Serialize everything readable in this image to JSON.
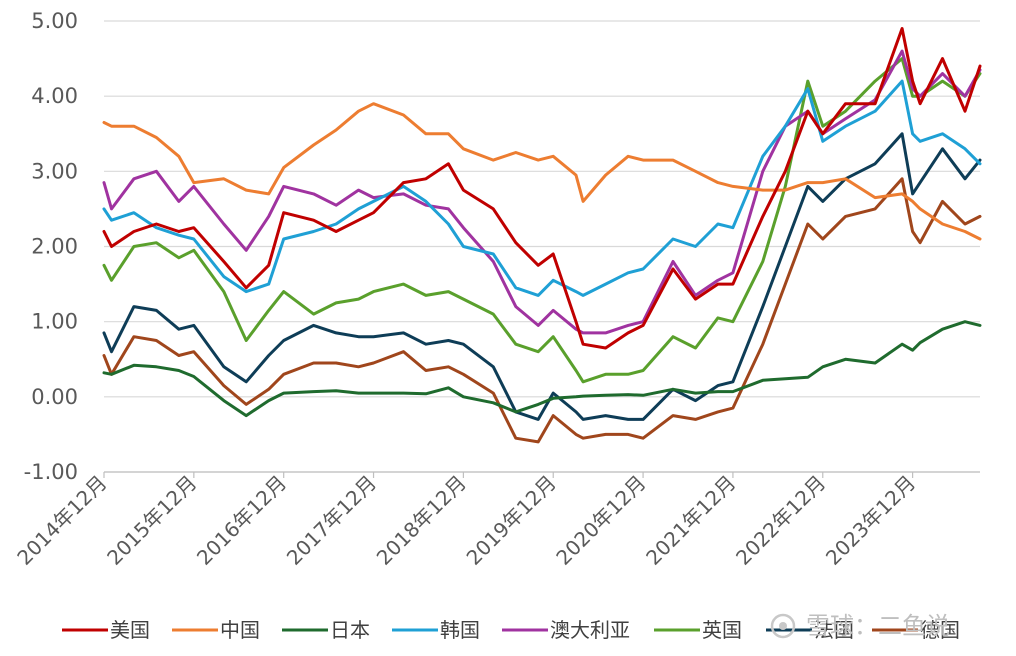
{
  "chart_data": {
    "type": "line",
    "title": "",
    "xlabel": "",
    "ylabel": "",
    "ylim": [
      -1.0,
      5.0
    ],
    "y_ticks": [
      "5.00",
      "4.00",
      "3.00",
      "2.00",
      "1.00",
      "0.00",
      "-1.00"
    ],
    "y_tick_values": [
      5,
      4,
      3,
      2,
      1,
      0,
      -1
    ],
    "x_ticks": [
      "2014年12月",
      "2015年12月",
      "2016年12月",
      "2017年12月",
      "2018年12月",
      "2019年12月",
      "2020年12月",
      "2021年12月",
      "2022年12月",
      "2023年12月"
    ],
    "x_tick_values": [
      2014.917,
      2015.917,
      2016.917,
      2017.917,
      2018.917,
      2019.917,
      2020.917,
      2021.917,
      2022.917,
      2023.917
    ],
    "xlim": [
      2014.917,
      2024.667
    ],
    "grid": "horizontal",
    "legend_position": "bottom",
    "series": [
      {
        "name": "美国",
        "color": "#C00000",
        "x": [
          2014.917,
          2015.0,
          2015.25,
          2015.5,
          2015.75,
          2015.917,
          2016.25,
          2016.5,
          2016.75,
          2016.917,
          2017.25,
          2017.5,
          2017.75,
          2017.917,
          2018.25,
          2018.5,
          2018.75,
          2018.917,
          2019.25,
          2019.5,
          2019.75,
          2019.917,
          2020.17,
          2020.25,
          2020.5,
          2020.75,
          2020.917,
          2021.25,
          2021.5,
          2021.75,
          2021.917,
          2022.25,
          2022.5,
          2022.75,
          2022.917,
          2023.17,
          2023.5,
          2023.8,
          2023.917,
          2024.0,
          2024.25,
          2024.5,
          2024.667
        ],
        "y": [
          2.2,
          2.0,
          2.2,
          2.3,
          2.2,
          2.25,
          1.8,
          1.45,
          1.75,
          2.45,
          2.35,
          2.2,
          2.35,
          2.45,
          2.85,
          2.9,
          3.1,
          2.75,
          2.5,
          2.05,
          1.75,
          1.9,
          1.0,
          0.7,
          0.65,
          0.85,
          0.95,
          1.7,
          1.3,
          1.5,
          1.5,
          2.4,
          3.0,
          3.8,
          3.5,
          3.9,
          3.9,
          4.9,
          4.2,
          3.9,
          4.5,
          3.8,
          4.4
        ]
      },
      {
        "name": "中国",
        "color": "#ED7D31",
        "x": [
          2014.917,
          2015.0,
          2015.25,
          2015.5,
          2015.75,
          2015.917,
          2016.25,
          2016.5,
          2016.75,
          2016.917,
          2017.25,
          2017.5,
          2017.75,
          2017.917,
          2018.25,
          2018.5,
          2018.75,
          2018.917,
          2019.25,
          2019.5,
          2019.75,
          2019.917,
          2020.17,
          2020.25,
          2020.5,
          2020.75,
          2020.917,
          2021.25,
          2021.5,
          2021.75,
          2021.917,
          2022.25,
          2022.5,
          2022.75,
          2022.917,
          2023.17,
          2023.5,
          2023.8,
          2023.917,
          2024.0,
          2024.25,
          2024.5,
          2024.667
        ],
        "y": [
          3.65,
          3.6,
          3.6,
          3.45,
          3.2,
          2.85,
          2.9,
          2.75,
          2.7,
          3.05,
          3.35,
          3.55,
          3.8,
          3.9,
          3.75,
          3.5,
          3.5,
          3.3,
          3.15,
          3.25,
          3.15,
          3.2,
          2.95,
          2.6,
          2.95,
          3.2,
          3.15,
          3.15,
          3.0,
          2.85,
          2.8,
          2.75,
          2.75,
          2.85,
          2.85,
          2.9,
          2.65,
          2.7,
          2.6,
          2.5,
          2.3,
          2.2,
          2.1
        ]
      },
      {
        "name": "日本",
        "color": "#1F6B2E",
        "x": [
          2014.917,
          2015.0,
          2015.25,
          2015.5,
          2015.75,
          2015.917,
          2016.25,
          2016.5,
          2016.75,
          2016.917,
          2017.25,
          2017.5,
          2017.75,
          2017.917,
          2018.25,
          2018.5,
          2018.75,
          2018.917,
          2019.25,
          2019.5,
          2019.75,
          2019.917,
          2020.17,
          2020.25,
          2020.5,
          2020.75,
          2020.917,
          2021.25,
          2021.5,
          2021.75,
          2021.917,
          2022.25,
          2022.5,
          2022.75,
          2022.917,
          2023.17,
          2023.5,
          2023.8,
          2023.917,
          2024.0,
          2024.25,
          2024.5,
          2024.667
        ],
        "y": [
          0.32,
          0.3,
          0.42,
          0.4,
          0.35,
          0.27,
          -0.05,
          -0.25,
          -0.05,
          0.05,
          0.07,
          0.08,
          0.05,
          0.05,
          0.05,
          0.04,
          0.12,
          0.0,
          -0.08,
          -0.2,
          -0.1,
          -0.02,
          0.0,
          0.01,
          0.02,
          0.03,
          0.02,
          0.1,
          0.05,
          0.07,
          0.07,
          0.22,
          0.24,
          0.26,
          0.4,
          0.5,
          0.45,
          0.7,
          0.62,
          0.72,
          0.9,
          1.0,
          0.95
        ]
      },
      {
        "name": "韩国",
        "color": "#1FA0D5",
        "x": [
          2014.917,
          2015.0,
          2015.25,
          2015.5,
          2015.75,
          2015.917,
          2016.25,
          2016.5,
          2016.75,
          2016.917,
          2017.25,
          2017.5,
          2017.75,
          2017.917,
          2018.25,
          2018.5,
          2018.75,
          2018.917,
          2019.25,
          2019.5,
          2019.75,
          2019.917,
          2020.17,
          2020.25,
          2020.5,
          2020.75,
          2020.917,
          2021.25,
          2021.5,
          2021.75,
          2021.917,
          2022.25,
          2022.5,
          2022.75,
          2022.917,
          2023.17,
          2023.5,
          2023.8,
          2023.917,
          2024.0,
          2024.25,
          2024.5,
          2024.667
        ],
        "y": [
          2.5,
          2.35,
          2.45,
          2.25,
          2.15,
          2.1,
          1.6,
          1.4,
          1.5,
          2.1,
          2.2,
          2.3,
          2.5,
          2.6,
          2.8,
          2.6,
          2.3,
          2.0,
          1.9,
          1.45,
          1.35,
          1.55,
          1.4,
          1.35,
          1.5,
          1.65,
          1.7,
          2.1,
          2.0,
          2.3,
          2.25,
          3.2,
          3.6,
          4.1,
          3.4,
          3.6,
          3.8,
          4.2,
          3.5,
          3.4,
          3.5,
          3.3,
          3.1
        ]
      },
      {
        "name": "澳大利亚",
        "color": "#A033A0",
        "x": [
          2014.917,
          2015.0,
          2015.25,
          2015.5,
          2015.75,
          2015.917,
          2016.25,
          2016.5,
          2016.75,
          2016.917,
          2017.25,
          2017.5,
          2017.75,
          2017.917,
          2018.25,
          2018.5,
          2018.75,
          2018.917,
          2019.25,
          2019.5,
          2019.75,
          2019.917,
          2020.17,
          2020.25,
          2020.5,
          2020.75,
          2020.917,
          2021.25,
          2021.5,
          2021.75,
          2021.917,
          2022.25,
          2022.5,
          2022.75,
          2022.917,
          2023.17,
          2023.5,
          2023.8,
          2023.917,
          2024.0,
          2024.25,
          2024.5,
          2024.667
        ],
        "y": [
          2.85,
          2.5,
          2.9,
          3.0,
          2.6,
          2.8,
          2.3,
          1.95,
          2.4,
          2.8,
          2.7,
          2.55,
          2.75,
          2.65,
          2.7,
          2.55,
          2.5,
          2.25,
          1.8,
          1.2,
          0.95,
          1.15,
          0.9,
          0.85,
          0.85,
          0.95,
          1.0,
          1.8,
          1.35,
          1.55,
          1.65,
          3.0,
          3.6,
          3.8,
          3.5,
          3.7,
          3.95,
          4.6,
          4.1,
          4.0,
          4.3,
          4.0,
          4.35
        ]
      },
      {
        "name": "英国",
        "color": "#5AA02C",
        "x": [
          2014.917,
          2015.0,
          2015.25,
          2015.5,
          2015.75,
          2015.917,
          2016.25,
          2016.5,
          2016.75,
          2016.917,
          2017.25,
          2017.5,
          2017.75,
          2017.917,
          2018.25,
          2018.5,
          2018.75,
          2018.917,
          2019.25,
          2019.5,
          2019.75,
          2019.917,
          2020.17,
          2020.25,
          2020.5,
          2020.75,
          2020.917,
          2021.25,
          2021.5,
          2021.75,
          2021.917,
          2022.25,
          2022.5,
          2022.75,
          2022.917,
          2023.17,
          2023.5,
          2023.8,
          2023.917,
          2024.0,
          2024.25,
          2024.5,
          2024.667
        ],
        "y": [
          1.75,
          1.55,
          2.0,
          2.05,
          1.85,
          1.95,
          1.4,
          0.75,
          1.15,
          1.4,
          1.1,
          1.25,
          1.3,
          1.4,
          1.5,
          1.35,
          1.4,
          1.3,
          1.1,
          0.7,
          0.6,
          0.8,
          0.35,
          0.2,
          0.3,
          0.3,
          0.35,
          0.8,
          0.65,
          1.05,
          1.0,
          1.8,
          2.8,
          4.2,
          3.6,
          3.8,
          4.2,
          4.5,
          4.0,
          4.0,
          4.2,
          4.0,
          4.3
        ]
      },
      {
        "name": "法国",
        "color": "#0E3D57",
        "x": [
          2014.917,
          2015.0,
          2015.25,
          2015.5,
          2015.75,
          2015.917,
          2016.25,
          2016.5,
          2016.75,
          2016.917,
          2017.25,
          2017.5,
          2017.75,
          2017.917,
          2018.25,
          2018.5,
          2018.75,
          2018.917,
          2019.25,
          2019.5,
          2019.75,
          2019.917,
          2020.17,
          2020.25,
          2020.5,
          2020.75,
          2020.917,
          2021.25,
          2021.5,
          2021.75,
          2021.917,
          2022.25,
          2022.5,
          2022.75,
          2022.917,
          2023.17,
          2023.5,
          2023.8,
          2023.917,
          2024.0,
          2024.25,
          2024.5,
          2024.667
        ],
        "y": [
          0.85,
          0.6,
          1.2,
          1.15,
          0.9,
          0.95,
          0.4,
          0.2,
          0.55,
          0.75,
          0.95,
          0.85,
          0.8,
          0.8,
          0.85,
          0.7,
          0.75,
          0.7,
          0.4,
          -0.2,
          -0.3,
          0.05,
          -0.2,
          -0.3,
          -0.25,
          -0.3,
          -0.3,
          0.1,
          -0.05,
          0.15,
          0.2,
          1.2,
          2.0,
          2.8,
          2.6,
          2.9,
          3.1,
          3.5,
          2.7,
          2.85,
          3.3,
          2.9,
          3.15
        ]
      },
      {
        "name": "德国",
        "color": "#A0461C",
        "x": [
          2014.917,
          2015.0,
          2015.25,
          2015.5,
          2015.75,
          2015.917,
          2016.25,
          2016.5,
          2016.75,
          2016.917,
          2017.25,
          2017.5,
          2017.75,
          2017.917,
          2018.25,
          2018.5,
          2018.75,
          2018.917,
          2019.25,
          2019.5,
          2019.75,
          2019.917,
          2020.17,
          2020.25,
          2020.5,
          2020.75,
          2020.917,
          2021.25,
          2021.5,
          2021.75,
          2021.917,
          2022.25,
          2022.5,
          2022.75,
          2022.917,
          2023.17,
          2023.5,
          2023.8,
          2023.917,
          2024.0,
          2024.25,
          2024.5,
          2024.667
        ],
        "y": [
          0.55,
          0.3,
          0.8,
          0.75,
          0.55,
          0.6,
          0.15,
          -0.1,
          0.1,
          0.3,
          0.45,
          0.45,
          0.4,
          0.45,
          0.6,
          0.35,
          0.4,
          0.3,
          0.05,
          -0.55,
          -0.6,
          -0.25,
          -0.5,
          -0.55,
          -0.5,
          -0.5,
          -0.55,
          -0.25,
          -0.3,
          -0.2,
          -0.15,
          0.7,
          1.5,
          2.3,
          2.1,
          2.4,
          2.5,
          2.9,
          2.2,
          2.05,
          2.6,
          2.3,
          2.4
        ]
      }
    ]
  },
  "watermark": "雪球：二鱼说"
}
